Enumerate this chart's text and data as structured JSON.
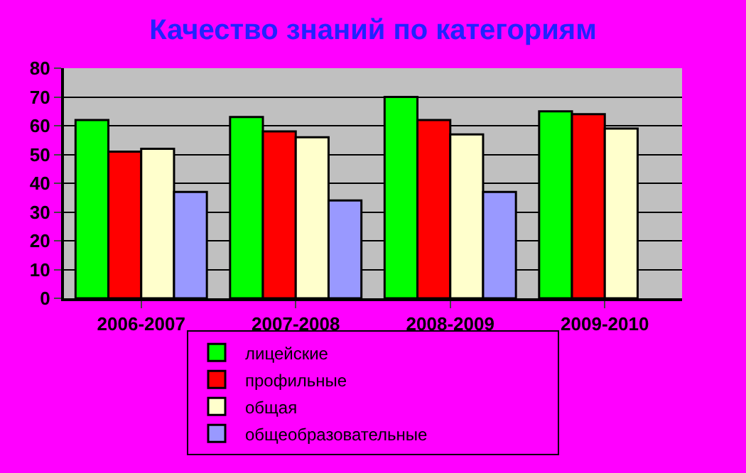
{
  "chart_data": {
    "type": "bar",
    "title": "Качество знаний по категориям",
    "categories": [
      "2006-2007",
      "2007-2008",
      "2008-2009",
      "2009-2010"
    ],
    "series": [
      {
        "name": "лицейские",
        "color": "#00ff00",
        "values": [
          62,
          63,
          70,
          65
        ]
      },
      {
        "name": "профильные",
        "color": "#ff0000",
        "values": [
          51,
          58,
          62,
          64
        ]
      },
      {
        "name": "общая",
        "color": "#ffffcc",
        "values": [
          52,
          56,
          57,
          59
        ]
      },
      {
        "name": "общеобразовательные",
        "color": "#9999ff",
        "values": [
          37,
          34,
          37,
          null
        ]
      }
    ],
    "ylim": [
      0,
      80
    ],
    "yticks": [
      0,
      10,
      20,
      30,
      40,
      50,
      60,
      70,
      80
    ],
    "grid": "y",
    "legend": "bottom"
  }
}
